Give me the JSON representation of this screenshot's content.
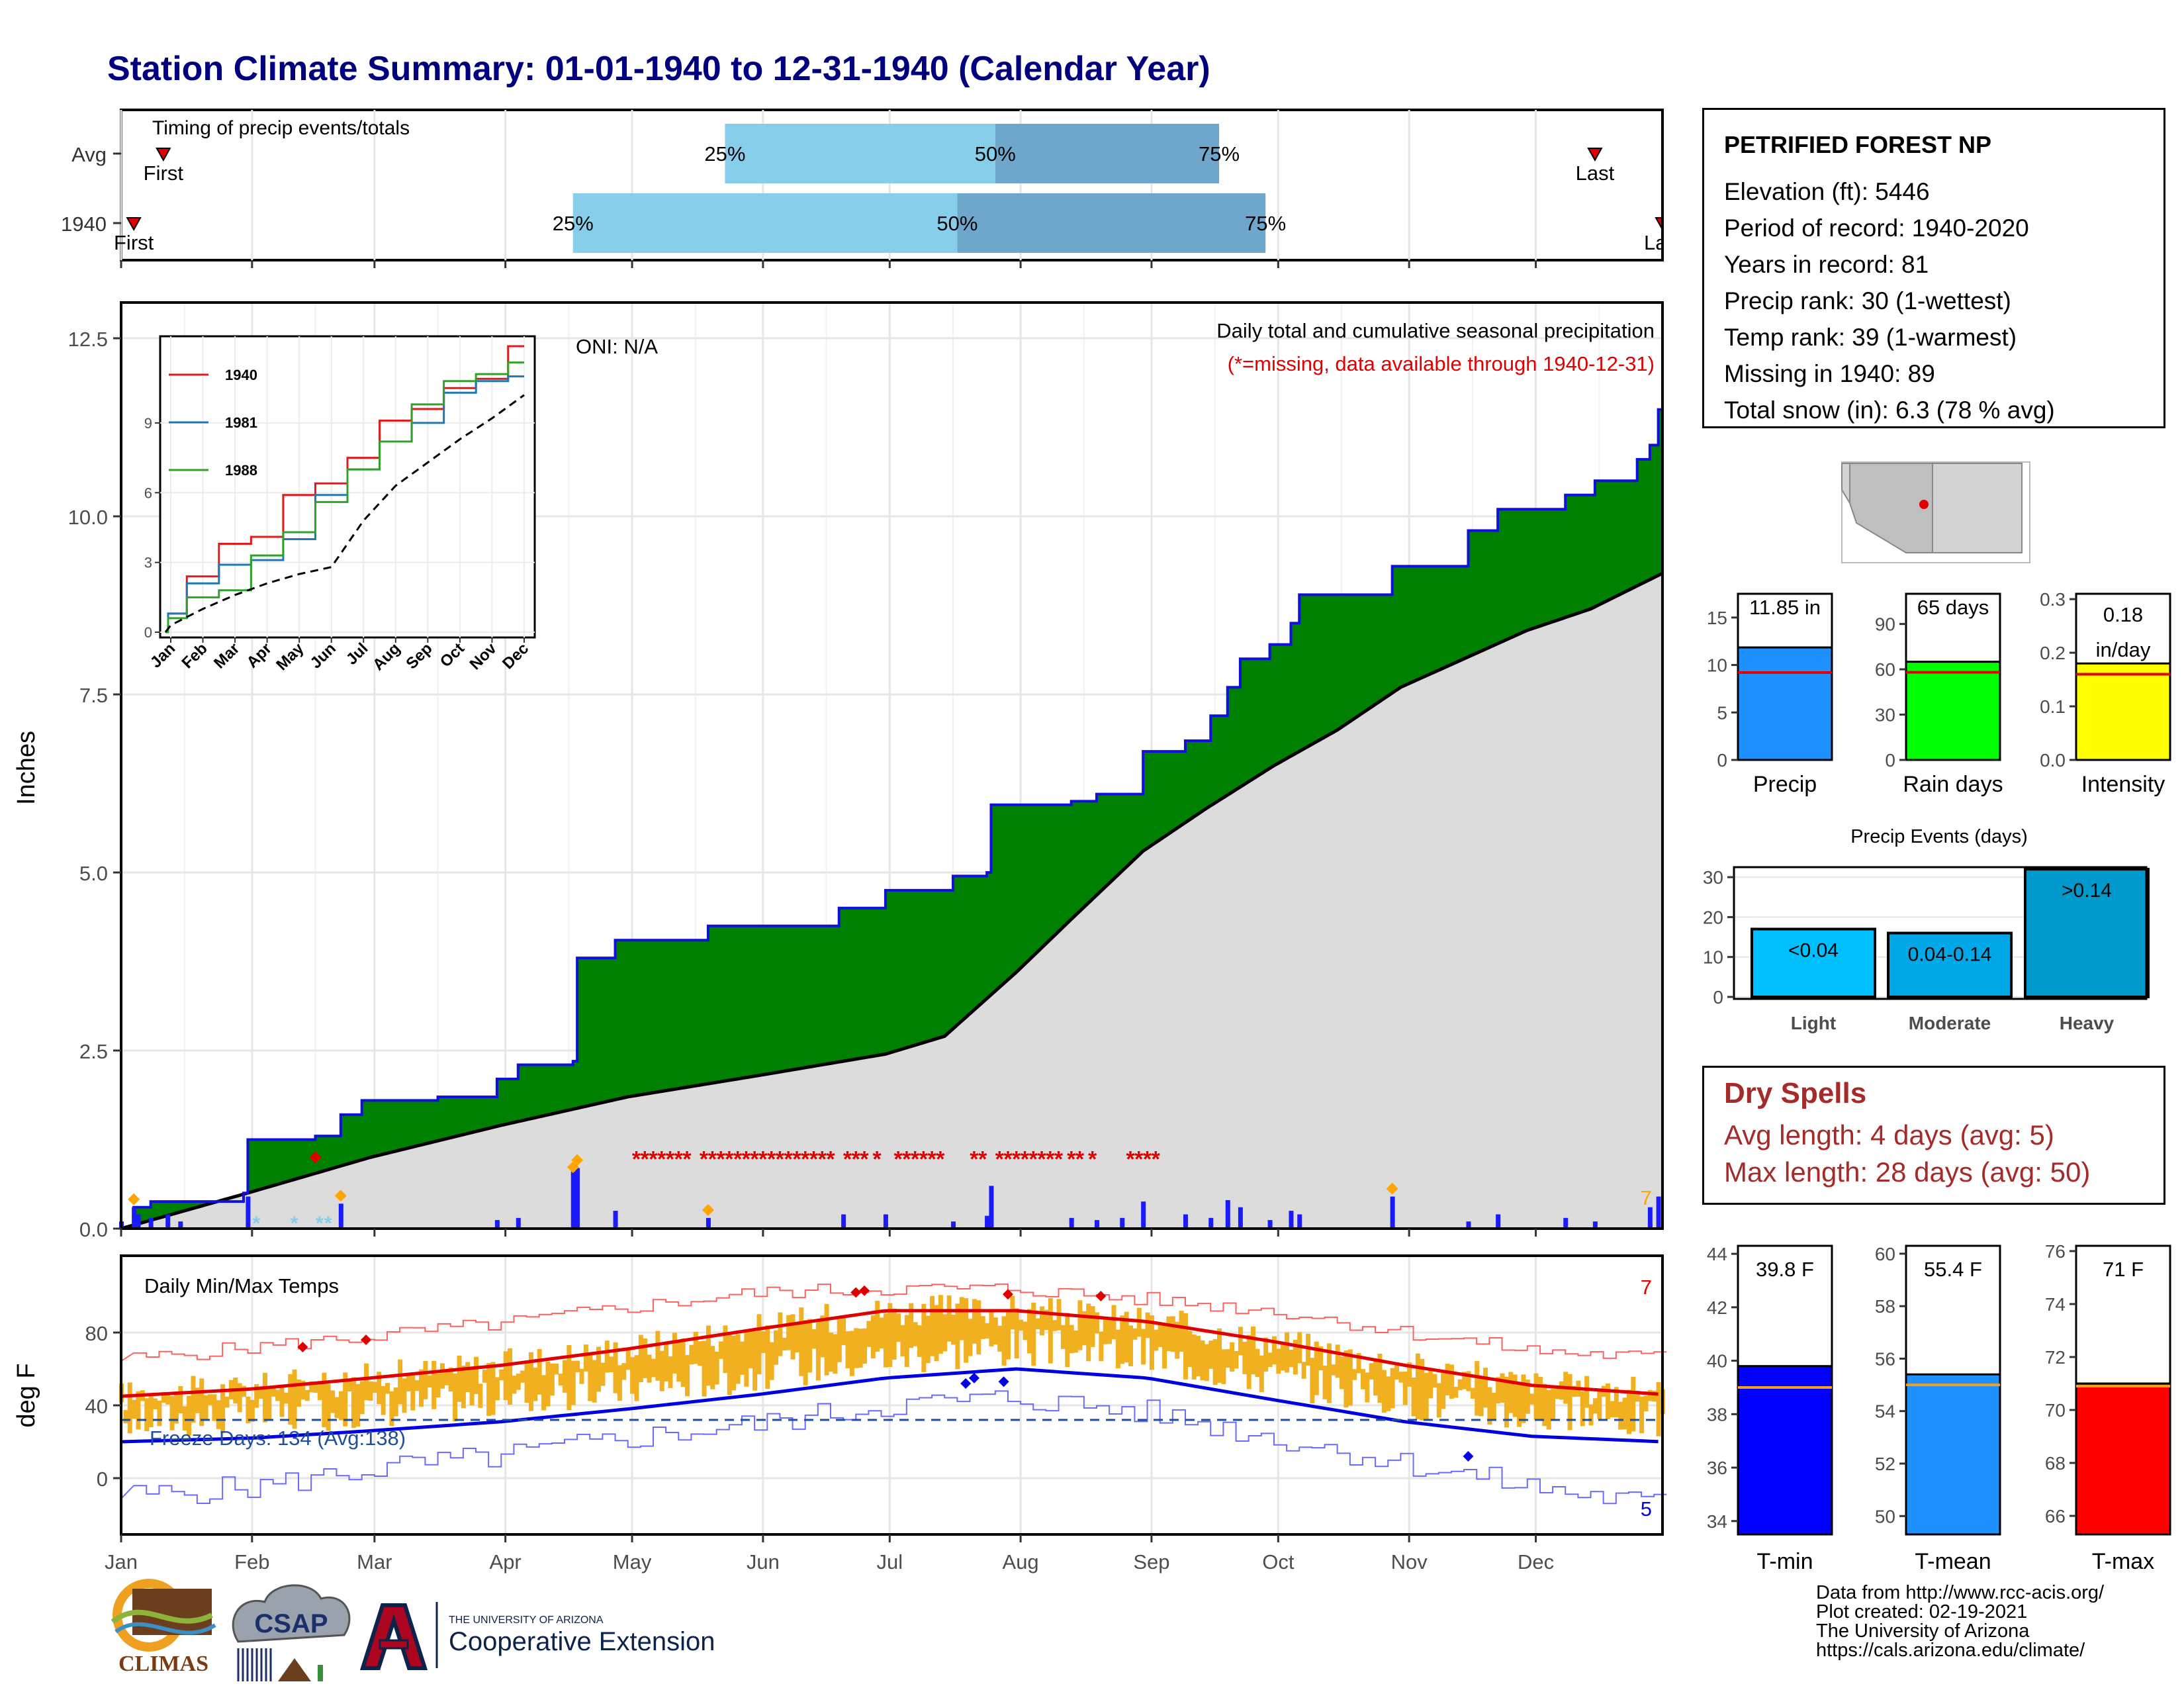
{
  "title": "Station Climate Summary: 01-01-1940 to 12-31-1940 (Calendar Year)",
  "timing": {
    "label": "Timing of precip events/totals",
    "rows": [
      {
        "label": "Avg",
        "first_doy": 11,
        "q25": 144,
        "q50": 208,
        "q75": 261,
        "last_doy": 350,
        "first_label": "First",
        "last_label": "Last",
        "p25_label": "25%",
        "p50_label": "50%",
        "p75_label": "75%"
      },
      {
        "label": "1940",
        "first_doy": 4,
        "q25": 108,
        "q50": 199,
        "q75": 272,
        "last_doy": 366,
        "first_label": "First",
        "last_label": "Last",
        "p25_label": "25%",
        "p50_label": "50%",
        "p75_label": "75%"
      }
    ]
  },
  "precip_panel": {
    "ylabel": "Inches",
    "yticks": [
      "0.0",
      "2.5",
      "5.0",
      "7.5",
      "10.0",
      "12.5"
    ],
    "oni_label": "ONI: N/A",
    "caption": "Daily total and cumulative seasonal precipitation",
    "missing_note": "(*=missing, data available through 1940-12-31)",
    "corner_value": "7",
    "months": [
      "Jan",
      "Feb",
      "Mar",
      "Apr",
      "May",
      "Jun",
      "Jul",
      "Aug",
      "Sep",
      "Oct",
      "Nov",
      "Dec"
    ]
  },
  "chart_data": [
    {
      "type": "area",
      "title": "Daily total and cumulative seasonal precipitation",
      "xlabel": "",
      "ylabel": "Inches",
      "ylim": [
        0,
        13
      ],
      "xlim_day": [
        1,
        366
      ],
      "series": [
        {
          "name": "1940",
          "points": [
            [
              1,
              0.0
            ],
            [
              4,
              0.3
            ],
            [
              8,
              0.38
            ],
            [
              30,
              0.5
            ],
            [
              31,
              1.25
            ],
            [
              47,
              1.3
            ],
            [
              53,
              1.6
            ],
            [
              58,
              1.8
            ],
            [
              76,
              1.85
            ],
            [
              90,
              2.1
            ],
            [
              95,
              2.3
            ],
            [
              108,
              2.35
            ],
            [
              109,
              3.8
            ],
            [
              118,
              4.05
            ],
            [
              140,
              4.25
            ],
            [
              171,
              4.5
            ],
            [
              182,
              4.75
            ],
            [
              198,
              4.95
            ],
            [
              206,
              5.0
            ],
            [
              207,
              5.95
            ],
            [
              226,
              6.0
            ],
            [
              232,
              6.1
            ],
            [
              243,
              6.7
            ],
            [
              253,
              6.85
            ],
            [
              259,
              7.2
            ],
            [
              263,
              7.6
            ],
            [
              266,
              8.0
            ],
            [
              273,
              8.2
            ],
            [
              278,
              8.5
            ],
            [
              280,
              8.9
            ],
            [
              302,
              9.3
            ],
            [
              320,
              9.8
            ],
            [
              327,
              10.1
            ],
            [
              343,
              10.3
            ],
            [
              350,
              10.5
            ],
            [
              360,
              10.8
            ],
            [
              363,
              11.0
            ],
            [
              365,
              11.5
            ],
            [
              366,
              11.85
            ]
          ]
        },
        {
          "name": "Avg",
          "points": [
            [
              1,
              0
            ],
            [
              31,
              0.5
            ],
            [
              60,
              1.0
            ],
            [
              91,
              1.45
            ],
            [
              121,
              1.85
            ],
            [
              152,
              2.15
            ],
            [
              182,
              2.45
            ],
            [
              196,
              2.7
            ],
            [
              213,
              3.6
            ],
            [
              227,
              4.4
            ],
            [
              243,
              5.3
            ],
            [
              258,
              5.9
            ],
            [
              274,
              6.5
            ],
            [
              289,
              7.0
            ],
            [
              304,
              7.6
            ],
            [
              319,
              8.0
            ],
            [
              334,
              8.4
            ],
            [
              349,
              8.7
            ],
            [
              366,
              9.2
            ]
          ]
        }
      ],
      "daily_bars": [
        [
          1,
          0.1
        ],
        [
          4,
          0.3
        ],
        [
          5,
          0.2
        ],
        [
          8,
          0.15
        ],
        [
          12,
          0.2
        ],
        [
          15,
          0.1
        ],
        [
          31,
          0.45
        ],
        [
          53,
          0.35
        ],
        [
          90,
          0.12
        ],
        [
          95,
          0.15
        ],
        [
          108,
          0.8
        ],
        [
          109,
          0.85
        ],
        [
          118,
          0.25
        ],
        [
          140,
          0.15
        ],
        [
          172,
          0.2
        ],
        [
          182,
          0.2
        ],
        [
          198,
          0.1
        ],
        [
          206,
          0.18
        ],
        [
          207,
          0.6
        ],
        [
          226,
          0.15
        ],
        [
          232,
          0.12
        ],
        [
          238,
          0.15
        ],
        [
          243,
          0.38
        ],
        [
          253,
          0.2
        ],
        [
          259,
          0.15
        ],
        [
          263,
          0.4
        ],
        [
          266,
          0.3
        ],
        [
          273,
          0.12
        ],
        [
          278,
          0.25
        ],
        [
          280,
          0.2
        ],
        [
          302,
          0.45
        ],
        [
          320,
          0.1
        ],
        [
          327,
          0.2
        ],
        [
          343,
          0.15
        ],
        [
          350,
          0.1
        ],
        [
          363,
          0.3
        ],
        [
          365,
          0.45
        ]
      ],
      "missing_days": [
        123,
        125,
        127,
        129,
        131,
        133,
        135,
        139,
        141,
        143,
        145,
        147,
        149,
        151,
        153,
        155,
        157,
        159,
        161,
        163,
        165,
        167,
        169,
        173,
        175,
        177,
        180,
        185,
        187,
        189,
        191,
        193,
        195,
        203,
        205,
        209,
        211,
        213,
        215,
        217,
        219,
        221,
        223,
        226,
        228,
        231,
        240,
        242,
        244,
        246
      ]
    },
    {
      "type": "line",
      "title": "",
      "xlabel": "",
      "ylabel": "",
      "ylim": [
        0,
        12.5
      ],
      "categories": [
        "Jan",
        "Feb",
        "Mar",
        "Apr",
        "May",
        "Jun",
        "Jul",
        "Aug",
        "Sep",
        "Oct",
        "Nov",
        "Dec"
      ],
      "series": [
        {
          "name": "1940",
          "values": [
            0.8,
            2.4,
            3.8,
            4.1,
            5.9,
            6.4,
            7.5,
            9.1,
            9.6,
            10.5,
            10.9,
            12.3
          ]
        },
        {
          "name": "1981",
          "values": [
            0.8,
            2.1,
            2.9,
            3.1,
            4.0,
            5.9,
            7.0,
            8.2,
            9.0,
            10.3,
            10.8,
            11.0
          ]
        },
        {
          "name": "1988",
          "values": [
            0.6,
            1.5,
            1.8,
            3.3,
            4.3,
            5.6,
            7.0,
            8.2,
            9.8,
            10.8,
            11.1,
            11.6
          ]
        },
        {
          "name": "Avg",
          "values": [
            0.3,
            1.0,
            1.6,
            2.1,
            2.5,
            2.8,
            4.8,
            6.3,
            7.3,
            8.3,
            9.2,
            10.2
          ]
        }
      ],
      "yticks": [
        "0",
        "3",
        "6",
        "9"
      ]
    },
    {
      "type": "line",
      "title": "Daily Min/Max Temps",
      "xlabel": "",
      "ylabel": "deg F",
      "ylim": [
        -30,
        110
      ],
      "series": [
        {
          "name": "Avg max",
          "points": [
            [
              1,
              45
            ],
            [
              32,
              49
            ],
            [
              60,
              55
            ],
            [
              91,
              62
            ],
            [
              121,
              71
            ],
            [
              152,
              82
            ],
            [
              182,
              92
            ],
            [
              213,
              92
            ],
            [
              244,
              86
            ],
            [
              274,
              75
            ],
            [
              305,
              62
            ],
            [
              335,
              51
            ],
            [
              366,
              46
            ]
          ]
        },
        {
          "name": "Avg min",
          "points": [
            [
              1,
              20
            ],
            [
              32,
              22
            ],
            [
              60,
              26
            ],
            [
              91,
              31
            ],
            [
              121,
              38
            ],
            [
              152,
              46
            ],
            [
              182,
              55
            ],
            [
              213,
              60
            ],
            [
              244,
              55
            ],
            [
              274,
              43
            ],
            [
              305,
              31
            ],
            [
              335,
              23
            ],
            [
              366,
              20
            ]
          ]
        },
        {
          "name": "Record high",
          "points": [
            [
              1,
              65
            ],
            [
              32,
              72
            ],
            [
              60,
              78
            ],
            [
              91,
              85
            ],
            [
              121,
              94
            ],
            [
              152,
              102
            ],
            [
              182,
              104
            ],
            [
              213,
              104
            ],
            [
              244,
              98
            ],
            [
              274,
              92
            ],
            [
              305,
              80
            ],
            [
              335,
              70
            ],
            [
              366,
              66
            ]
          ]
        },
        {
          "name": "Record low",
          "points": [
            [
              1,
              -10
            ],
            [
              32,
              -5
            ],
            [
              60,
              5
            ],
            [
              91,
              12
            ],
            [
              121,
              22
            ],
            [
              152,
              30
            ],
            [
              182,
              40
            ],
            [
              213,
              44
            ],
            [
              244,
              36
            ],
            [
              274,
              22
            ],
            [
              305,
              8
            ],
            [
              335,
              -5
            ],
            [
              366,
              -15
            ]
          ]
        }
      ],
      "freeze_line": 32,
      "freeze_label": "Freeze Days: 134 (Avg:138)",
      "yticks": [
        "0",
        "40",
        "80"
      ],
      "corner_high": "7",
      "corner_low": "5"
    },
    {
      "type": "bar",
      "title": "",
      "categories": [
        "Precip",
        "Rain days",
        "Intensity"
      ],
      "series": [
        {
          "name": "1940",
          "values": [
            11.85,
            65,
            0.18
          ]
        }
      ],
      "averages": [
        9.2,
        58,
        0.16
      ],
      "ylims": [
        [
          0,
          17.5
        ],
        [
          0,
          110
        ],
        [
          0,
          0.31
        ]
      ],
      "value_labels": [
        "11.85 in",
        "65 days",
        "0.18 in/day"
      ],
      "yticks": [
        [
          "0",
          "5",
          "10",
          "15"
        ],
        [
          "0",
          "30",
          "60",
          "90"
        ],
        [
          "0.0",
          "0.1",
          "0.2",
          "0.3"
        ]
      ]
    },
    {
      "type": "bar",
      "title": "Precip Events (days)",
      "categories": [
        "Light",
        "Moderate",
        "Heavy"
      ],
      "values": [
        17,
        16,
        32
      ],
      "value_labels": [
        "<0.04",
        "0.04-0.14",
        ">0.14"
      ],
      "ylim": [
        0,
        33
      ],
      "yticks": [
        "0",
        "10",
        "20",
        "30"
      ]
    },
    {
      "type": "bar",
      "title": "",
      "categories": [
        "T-min",
        "T-mean",
        "T-max"
      ],
      "series": [
        {
          "name": "1940",
          "values": [
            39.8,
            55.4,
            71
          ]
        }
      ],
      "averages": [
        39.0,
        55.0,
        70.9
      ],
      "ylims": [
        [
          33.5,
          44.3
        ],
        [
          49.3,
          60.3
        ],
        [
          65.3,
          76.2
        ]
      ],
      "value_labels": [
        "39.8 F",
        "55.4 F",
        "71 F"
      ],
      "yticks": [
        [
          "34",
          "36",
          "38",
          "40",
          "42",
          "44"
        ],
        [
          "50",
          "52",
          "54",
          "56",
          "58",
          "60"
        ],
        [
          "66",
          "68",
          "70",
          "72",
          "74",
          "76"
        ]
      ]
    }
  ],
  "station": {
    "name": "PETRIFIED FOREST NP",
    "lines": [
      "Elevation (ft): 5446",
      "Period of record: 1940-2020",
      "Years in record: 81",
      "Precip rank: 30 (1-wettest)",
      "Temp rank: 39 (1-warmest)",
      "Missing in 1940: 89",
      "Total snow (in): 6.3 (78 % avg)"
    ]
  },
  "dry_spells": {
    "title": "Dry Spells",
    "avg_line": "Avg length: 4 days (avg: 5)",
    "max_line": "Max length: 28 days (avg: 50)"
  },
  "temp_panel": {
    "ylabel": "deg F",
    "title": "Daily Min/Max Temps"
  },
  "credits": {
    "line1": "Data from http://www.rcc-acis.org/",
    "line2": "Plot created: 02-19-2021",
    "line3": "The University of Arizona",
    "line4": "https://cals.arizona.edu/climate/"
  },
  "logos": {
    "climas": "CLIMAS",
    "csap": "CSAP",
    "ua_small": "THE UNIVERSITY OF ARIZONA",
    "ua_big": "Cooperative Extension"
  },
  "colors": {
    "title": "#00007f",
    "green_fill": "#008000",
    "avg_fill": "#dcdcdc",
    "q_light": "#87ceeb",
    "q_dark": "#6fa6cc",
    "bar_precip": "#1e90ff",
    "bar_rain": "#00ff00",
    "bar_intensity": "#ffff00",
    "event_bar": "#0099cc",
    "tmin_bar": "#0000ff",
    "tmean_bar": "#1e90ff",
    "tmax_bar": "#ff0000",
    "dry_spells": "#a52a2a",
    "temp_bars": "#f0b020"
  }
}
